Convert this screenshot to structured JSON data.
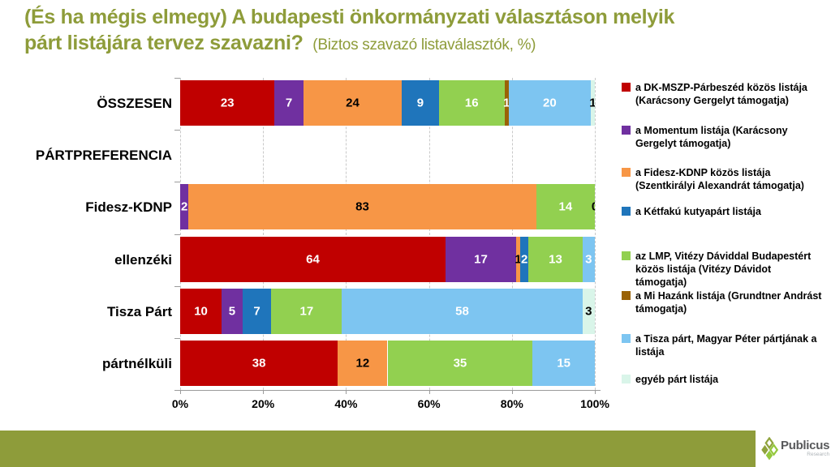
{
  "title": {
    "line1": "(És ha mégis elmegy) A budapesti önkormányzati választáson melyik",
    "line2_bold": "párt listájára tervez szavazni?",
    "subtitle": "(Biztos szavazó listaválasztók, %)"
  },
  "colors": {
    "title_olive": "#8E9C3A",
    "footer_olive": "#8E9C3A",
    "gridline": "#C9C9C9",
    "axis": "#9B9B9B"
  },
  "chart_data": {
    "type": "bar",
    "orientation": "horizontal",
    "stacked": true,
    "normalized_to_100": true,
    "title": "(És ha mégis elmegy) A budapesti önkormányzati választáson melyik párt listájára tervez szavazni?",
    "subtitle": "(Biztos szavazó listaválasztók, %)",
    "xlabel": "",
    "ylabel": "",
    "xlim": [
      0,
      100
    ],
    "x_ticks": [
      "0%",
      "20%",
      "40%",
      "60%",
      "80%",
      "100%"
    ],
    "grid": "vertical-dashed",
    "legend_position": "right",
    "categories": [
      "ÖSSZESEN",
      "PÁRTPREFERENCIA",
      "Fidesz-KDNP",
      "ellenzéki",
      "Tisza Párt",
      "pártnélküli"
    ],
    "series": [
      {
        "name": "a DK-MSZP-Párbeszéd közös listája (Karácsony Gergelyt támogatja)",
        "color": "#C00000",
        "label_color": "#FFFFFF",
        "values": [
          23,
          null,
          null,
          64,
          10,
          38
        ]
      },
      {
        "name": "a Momentum listája (Karácsony Gergelyt támogatja)",
        "color": "#7030A0",
        "label_color": "#FFFFFF",
        "values": [
          7,
          null,
          2,
          17,
          5,
          null
        ]
      },
      {
        "name": "a Fidesz-KDNP közös listája (Szentkirályi Alexandrát támogatja)",
        "color": "#F79646",
        "label_color": "#000000",
        "values": [
          24,
          null,
          83,
          1,
          null,
          12
        ]
      },
      {
        "name": "a Kétfakú kutyapárt listája",
        "color": "#1F75BB",
        "label_color": "#FFFFFF",
        "values": [
          9,
          null,
          null,
          2,
          7,
          null
        ]
      },
      {
        "name": "az LMP, Vitézy Dáviddal Budapestért közös listája (Vitézy Dávidot támogatja)",
        "color": "#92D050",
        "label_color": "#FFFFFF",
        "values": [
          16,
          null,
          14,
          13,
          17,
          35
        ]
      },
      {
        "name": "a Mi Hazánk listája (Grundtner Andrást támogatja)",
        "color": "#9A6206",
        "label_color": "#FFFFFF",
        "values": [
          1,
          null,
          null,
          null,
          null,
          null
        ]
      },
      {
        "name": "a Tisza párt, Magyar Péter pártjának a listája",
        "color": "#7DC5F1",
        "label_color": "#FFFFFF",
        "values": [
          20,
          null,
          null,
          3,
          58,
          15
        ]
      },
      {
        "name": "egyéb párt listája",
        "color": "#D9F5E9",
        "label_color": "#000000",
        "values": [
          1,
          null,
          0,
          null,
          3,
          null
        ]
      }
    ]
  },
  "footer": {
    "brand": "Publicus",
    "brand_sub": "Research"
  }
}
